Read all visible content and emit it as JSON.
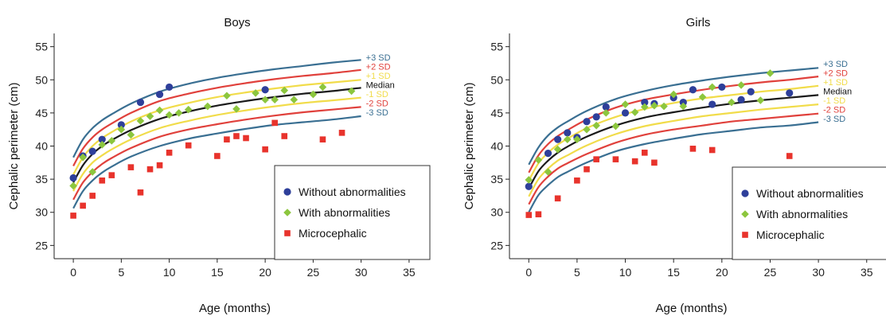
{
  "chart_data": [
    {
      "type": "scatter",
      "title": "Boys",
      "xlabel": "Age (months)",
      "ylabel": "Cephalic perimeter (cm)",
      "xlim": [
        -2,
        37
      ],
      "ylim": [
        23,
        57
      ],
      "xticks": [
        "0",
        "5",
        "10",
        "15",
        "20",
        "25",
        "30",
        "35"
      ],
      "yticks": [
        "25",
        "30",
        "35",
        "40",
        "45",
        "50",
        "55"
      ],
      "curve_labels": [
        "+3 SD",
        "+2 SD",
        "+1 SD",
        "Median",
        "-1 SD",
        "-2 SD",
        "-3 SD"
      ],
      "curves": [
        {
          "name": "+3 SD",
          "color": "#3a6f92",
          "x": [
            0,
            1,
            2,
            3,
            4,
            6,
            9,
            12,
            15,
            18,
            21,
            24,
            27,
            30
          ],
          "y": [
            38.3,
            41.0,
            42.7,
            43.9,
            44.8,
            46.4,
            48.2,
            49.4,
            50.3,
            51.0,
            51.6,
            52.1,
            52.6,
            53.0
          ]
        },
        {
          "name": "+2 SD",
          "color": "#e0413c",
          "x": [
            0,
            1,
            2,
            3,
            4,
            6,
            9,
            12,
            15,
            18,
            21,
            24,
            27,
            30
          ],
          "y": [
            37.0,
            39.6,
            41.3,
            42.5,
            43.4,
            45.0,
            46.8,
            47.9,
            48.8,
            49.5,
            50.1,
            50.6,
            51.0,
            51.5
          ]
        },
        {
          "name": "+1 SD",
          "color": "#f1dc4a",
          "x": [
            0,
            1,
            2,
            3,
            4,
            6,
            9,
            12,
            15,
            18,
            21,
            24,
            27,
            30
          ],
          "y": [
            35.7,
            38.3,
            40.0,
            41.2,
            42.1,
            43.7,
            45.4,
            46.5,
            47.4,
            48.1,
            48.7,
            49.2,
            49.6,
            50.0
          ]
        },
        {
          "name": "Median",
          "color": "#1a1a1a",
          "x": [
            0,
            1,
            2,
            3,
            4,
            6,
            9,
            12,
            15,
            18,
            21,
            24,
            27,
            30
          ],
          "y": [
            34.5,
            37.1,
            38.8,
            40.0,
            40.9,
            42.4,
            44.1,
            45.2,
            46.1,
            46.8,
            47.4,
            47.9,
            48.3,
            48.8
          ]
        },
        {
          "name": "-1 SD",
          "color": "#f1dc4a",
          "x": [
            0,
            1,
            2,
            3,
            4,
            6,
            9,
            12,
            15,
            18,
            21,
            24,
            27,
            30
          ],
          "y": [
            33.2,
            35.8,
            37.5,
            38.6,
            39.5,
            41.0,
            42.7,
            43.8,
            44.7,
            45.4,
            46.0,
            46.5,
            46.9,
            47.3
          ]
        },
        {
          "name": "-2 SD",
          "color": "#e0413c",
          "x": [
            0,
            1,
            2,
            3,
            4,
            6,
            9,
            12,
            15,
            18,
            21,
            24,
            27,
            30
          ],
          "y": [
            31.9,
            34.5,
            36.1,
            37.3,
            38.2,
            39.7,
            41.4,
            42.5,
            43.3,
            44.0,
            44.6,
            45.1,
            45.5,
            45.9
          ]
        },
        {
          "name": "-3 SD",
          "color": "#3a6f92",
          "x": [
            0,
            1,
            2,
            3,
            4,
            6,
            9,
            12,
            15,
            18,
            21,
            24,
            27,
            30
          ],
          "y": [
            30.6,
            33.2,
            34.8,
            36.0,
            36.9,
            38.4,
            40.0,
            41.1,
            41.9,
            42.6,
            43.2,
            43.6,
            44.0,
            44.5
          ]
        }
      ],
      "series": [
        {
          "name": "Without abnormalities",
          "marker": "circle",
          "color": "#2e3f9a",
          "points": [
            [
              0,
              35.2
            ],
            [
              1,
              38.5
            ],
            [
              2,
              39.2
            ],
            [
              3,
              41.0
            ],
            [
              5,
              43.2
            ],
            [
              7,
              46.6
            ],
            [
              9,
              47.8
            ],
            [
              10,
              48.9
            ],
            [
              20,
              48.5
            ]
          ]
        },
        {
          "name": "With abnormalities",
          "marker": "diamond",
          "color": "#8cc63e",
          "points": [
            [
              0,
              34.0
            ],
            [
              1,
              38.3
            ],
            [
              2,
              36.1
            ],
            [
              3,
              40.2
            ],
            [
              4,
              40.8
            ],
            [
              5,
              42.5
            ],
            [
              6,
              41.7
            ],
            [
              7,
              43.8
            ],
            [
              8,
              44.5
            ],
            [
              9,
              45.4
            ],
            [
              10,
              44.7
            ],
            [
              11,
              45.0
            ],
            [
              12,
              45.5
            ],
            [
              14,
              46.0
            ],
            [
              16,
              47.6
            ],
            [
              17,
              45.6
            ],
            [
              19,
              48.0
            ],
            [
              20,
              47.0
            ],
            [
              21,
              47.0
            ],
            [
              22,
              48.4
            ],
            [
              23,
              47.0
            ],
            [
              25,
              47.8
            ],
            [
              26,
              48.9
            ],
            [
              29,
              48.3
            ]
          ]
        },
        {
          "name": "Microcephalic",
          "marker": "square",
          "color": "#e8332c",
          "points": [
            [
              0,
              29.5
            ],
            [
              1,
              31.0
            ],
            [
              2,
              32.5
            ],
            [
              3,
              34.8
            ],
            [
              4,
              35.6
            ],
            [
              6,
              36.8
            ],
            [
              7,
              33.0
            ],
            [
              8,
              36.5
            ],
            [
              9,
              37.1
            ],
            [
              10,
              39.0
            ],
            [
              12,
              40.1
            ],
            [
              15,
              38.5
            ],
            [
              16,
              41.0
            ],
            [
              17,
              41.5
            ],
            [
              18,
              41.2
            ],
            [
              20,
              39.5
            ],
            [
              21,
              43.5
            ],
            [
              22,
              41.5
            ],
            [
              26,
              41.0
            ],
            [
              28,
              42.0
            ]
          ]
        }
      ],
      "legend": [
        "Without abnormalities",
        "With abnormalities",
        "Microcephalic"
      ],
      "legend_position": "bottom-right",
      "grid": false
    },
    {
      "type": "scatter",
      "title": "Girls",
      "xlabel": "Age (months)",
      "ylabel": "Cephalic perimeter (cm)",
      "xlim": [
        -2,
        37
      ],
      "ylim": [
        23,
        57
      ],
      "xticks": [
        "0",
        "5",
        "10",
        "15",
        "20",
        "25",
        "30",
        "35"
      ],
      "yticks": [
        "25",
        "30",
        "35",
        "40",
        "45",
        "50",
        "55"
      ],
      "curve_labels": [
        "+3 SD",
        "+2 SD",
        "+1 SD",
        "Median",
        "-1 SD",
        "-2 SD",
        "-3 SD"
      ],
      "curves": [
        {
          "name": "+3 SD",
          "color": "#3a6f92",
          "x": [
            0,
            1,
            2,
            3,
            4,
            6,
            9,
            12,
            15,
            18,
            21,
            24,
            27,
            30
          ],
          "y": [
            37.2,
            39.8,
            41.6,
            42.8,
            43.7,
            45.3,
            47.1,
            48.3,
            49.2,
            49.9,
            50.5,
            51.0,
            51.4,
            51.8
          ]
        },
        {
          "name": "+2 SD",
          "color": "#e0413c",
          "x": [
            0,
            1,
            2,
            3,
            4,
            6,
            9,
            12,
            15,
            18,
            21,
            24,
            27,
            30
          ],
          "y": [
            36.0,
            38.6,
            40.3,
            41.5,
            42.4,
            44.0,
            45.8,
            47.0,
            47.8,
            48.5,
            49.1,
            49.6,
            50.0,
            50.5
          ]
        },
        {
          "name": "+1 SD",
          "color": "#f1dc4a",
          "x": [
            0,
            1,
            2,
            3,
            4,
            6,
            9,
            12,
            15,
            18,
            21,
            24,
            27,
            30
          ],
          "y": [
            34.8,
            37.4,
            39.0,
            40.2,
            41.1,
            42.7,
            44.4,
            45.6,
            46.5,
            47.2,
            47.7,
            48.2,
            48.6,
            49.1
          ]
        },
        {
          "name": "Median",
          "color": "#1a1a1a",
          "x": [
            0,
            1,
            2,
            3,
            4,
            6,
            9,
            12,
            15,
            18,
            21,
            24,
            27,
            30
          ],
          "y": [
            33.6,
            36.2,
            37.8,
            39.0,
            39.9,
            41.4,
            43.1,
            44.3,
            45.1,
            45.8,
            46.4,
            46.9,
            47.3,
            47.7
          ]
        },
        {
          "name": "-1 SD",
          "color": "#f1dc4a",
          "x": [
            0,
            1,
            2,
            3,
            4,
            6,
            9,
            12,
            15,
            18,
            21,
            24,
            27,
            30
          ],
          "y": [
            32.4,
            35.0,
            36.6,
            37.8,
            38.6,
            40.1,
            41.8,
            43.0,
            43.8,
            44.5,
            45.0,
            45.5,
            45.9,
            46.3
          ]
        },
        {
          "name": "-2 SD",
          "color": "#e0413c",
          "x": [
            0,
            1,
            2,
            3,
            4,
            6,
            9,
            12,
            15,
            18,
            21,
            24,
            27,
            30
          ],
          "y": [
            31.2,
            33.8,
            35.4,
            36.6,
            37.4,
            38.8,
            40.5,
            41.7,
            42.5,
            43.1,
            43.7,
            44.1,
            44.5,
            44.9
          ]
        },
        {
          "name": "-3 SD",
          "color": "#3a6f92",
          "x": [
            0,
            1,
            2,
            3,
            4,
            6,
            9,
            12,
            15,
            18,
            21,
            24,
            27,
            30
          ],
          "y": [
            30.0,
            32.6,
            34.1,
            35.3,
            36.1,
            37.5,
            39.2,
            40.3,
            41.1,
            41.8,
            42.3,
            42.8,
            43.1,
            43.6
          ]
        }
      ],
      "series": [
        {
          "name": "Without abnormalities",
          "marker": "circle",
          "color": "#2e3f9a",
          "points": [
            [
              0,
              33.9
            ],
            [
              2,
              38.9
            ],
            [
              3,
              41.0
            ],
            [
              4,
              42.0
            ],
            [
              5,
              41.3
            ],
            [
              6,
              43.7
            ],
            [
              7,
              44.4
            ],
            [
              8,
              45.9
            ],
            [
              10,
              45.0
            ],
            [
              12,
              46.6
            ],
            [
              13,
              46.4
            ],
            [
              15,
              47.3
            ],
            [
              16,
              46.6
            ],
            [
              17,
              48.5
            ],
            [
              19,
              46.3
            ],
            [
              20,
              48.9
            ],
            [
              22,
              47.0
            ],
            [
              23,
              48.2
            ],
            [
              27,
              48.0
            ]
          ]
        },
        {
          "name": "With abnormalities",
          "marker": "diamond",
          "color": "#8cc63e",
          "points": [
            [
              0,
              34.9
            ],
            [
              1,
              37.9
            ],
            [
              2,
              36.1
            ],
            [
              3,
              39.5
            ],
            [
              4,
              41.0
            ],
            [
              5,
              41.0
            ],
            [
              6,
              42.5
            ],
            [
              7,
              43.1
            ],
            [
              8,
              45.0
            ],
            [
              9,
              43.0
            ],
            [
              10,
              46.3
            ],
            [
              11,
              45.1
            ],
            [
              12,
              45.9
            ],
            [
              13,
              46.1
            ],
            [
              14,
              46.0
            ],
            [
              15,
              47.8
            ],
            [
              16,
              46.0
            ],
            [
              18,
              47.4
            ],
            [
              19,
              48.9
            ],
            [
              21,
              46.6
            ],
            [
              22,
              49.2
            ],
            [
              24,
              46.9
            ],
            [
              25,
              51.0
            ]
          ]
        },
        {
          "name": "Microcephalic",
          "marker": "square",
          "color": "#e8332c",
          "points": [
            [
              0,
              29.6
            ],
            [
              1,
              29.7
            ],
            [
              3,
              32.1
            ],
            [
              5,
              34.8
            ],
            [
              6,
              36.5
            ],
            [
              7,
              38.0
            ],
            [
              9,
              38.0
            ],
            [
              11,
              37.7
            ],
            [
              12,
              39.0
            ],
            [
              13,
              37.5
            ],
            [
              17,
              39.6
            ],
            [
              19,
              39.4
            ],
            [
              27,
              38.5
            ]
          ]
        }
      ],
      "legend": [
        "Without abnormalities",
        "With abnormalities",
        "Microcephalic"
      ],
      "legend_position": "bottom-right",
      "grid": false
    }
  ]
}
